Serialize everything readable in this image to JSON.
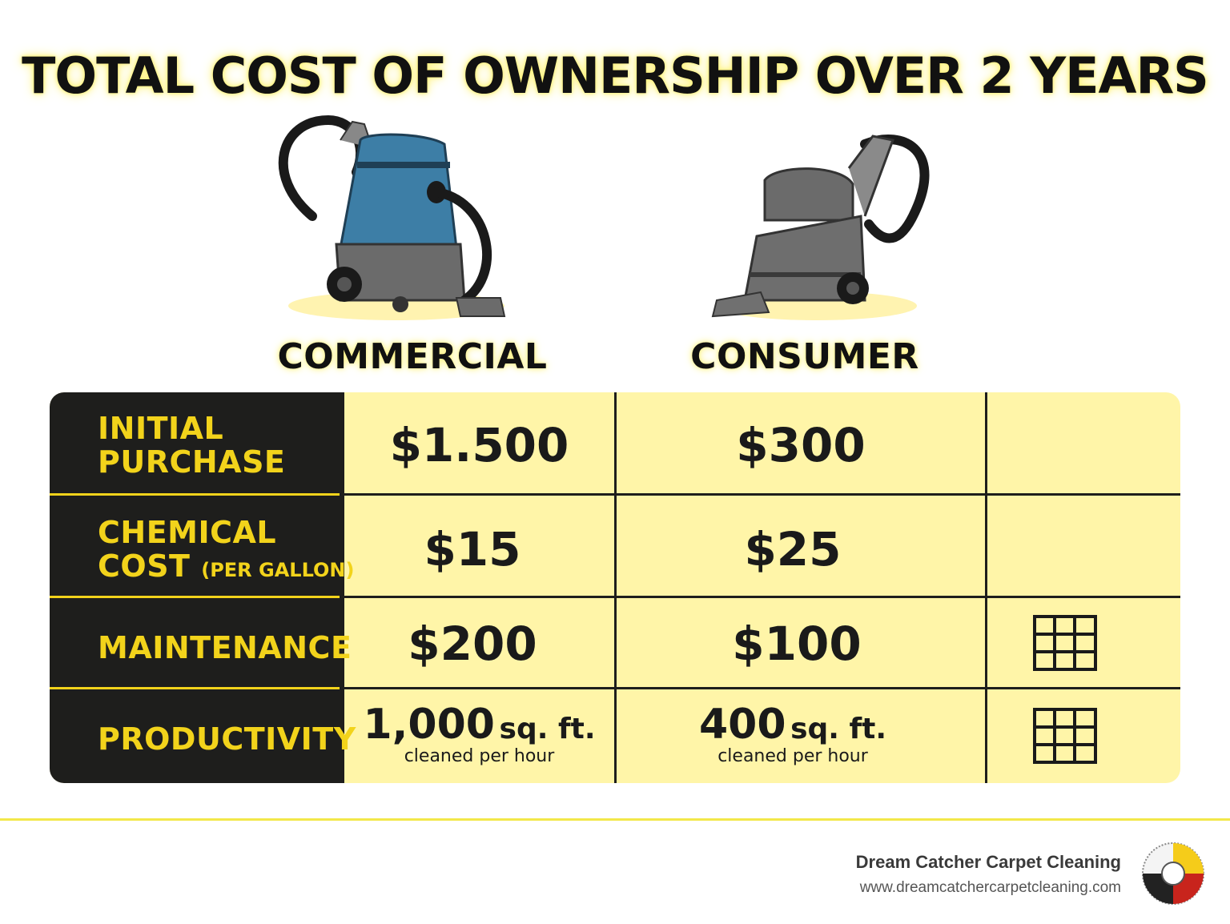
{
  "title": "TOTAL COST OF OWNERSHIP OVER 2 YEARS",
  "columns": {
    "commercial": "COMMERCIAL",
    "consumer": "CONSUMER"
  },
  "rows": [
    {
      "label_line1": "INITIAL",
      "label_line2": "PURCHASE",
      "commercial": "$1.500",
      "consumer": "$300"
    },
    {
      "label_line1": "CHEMICAL",
      "label_line2": "COST",
      "label_note": "(PER GALLON)",
      "commercial": "$15",
      "consumer": "$25"
    },
    {
      "label_line1": "MAINTENANCE",
      "commercial": "$200",
      "consumer": "$100",
      "icon": "grid-icon"
    },
    {
      "label_line1": "PRODUCTIVITY",
      "commercial": "1,000",
      "commercial_unit": "sq. ft.",
      "commercial_note": "cleaned per hour",
      "consumer": "400",
      "consumer_unit": "sq. ft.",
      "consumer_note": "cleaned per hour",
      "icon": "grid-icon"
    }
  ],
  "footer": {
    "company": "Dream Catcher Carpet Cleaning",
    "website": "www.dreamcatchercarpetcleaning.com"
  },
  "colors": {
    "title_glow": "#fff27a",
    "table_bg": "#fff5a8",
    "label_bg": "#1e1e1c",
    "label_text": "#f2d31b",
    "commercial_body": "#3d7ea6",
    "machine_gray": "#6b6b6b",
    "footer_line": "#f3e84a"
  }
}
